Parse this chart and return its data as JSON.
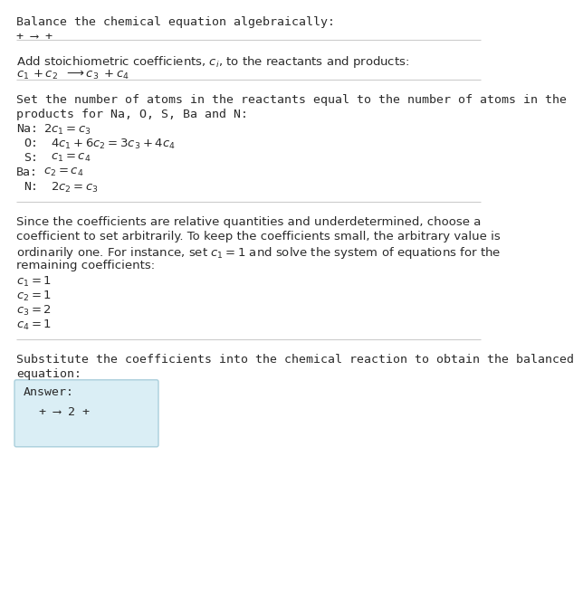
{
  "title": "Balance the chemical equation algebraically:",
  "section1_title": "Add stoichiometric coefficients, $c_i$, to the reactants and products:",
  "section2_title_line1": "Set the number of atoms in the reactants equal to the number of atoms in the",
  "section2_title_line2": "products for Na, O, S, Ba and N:",
  "equations": [
    [
      "Na:",
      "$2 c_1 = c_3$"
    ],
    [
      "  O:",
      "$4 c_1 + 6 c_2 = 3 c_3 + 4 c_4$"
    ],
    [
      "  S:",
      "$c_1 = c_4$"
    ],
    [
      "Ba:",
      "$c_2 = c_4$"
    ],
    [
      "  N:",
      "$2 c_2 = c_3$"
    ]
  ],
  "section3_lines": [
    "Since the coefficients are relative quantities and underdetermined, choose a",
    "coefficient to set arbitrarily. To keep the coefficients small, the arbitrary value is",
    "ordinarily one. For instance, set $c_1 = 1$ and solve the system of equations for the",
    "remaining coefficients:"
  ],
  "coefficients": [
    "$c_1 = 1$",
    "$c_2 = 1$",
    "$c_3 = 2$",
    "$c_4 = 1$"
  ],
  "section4_line1": "Substitute the coefficients into the chemical reaction to obtain the balanced",
  "section4_line2": "equation:",
  "answer_label": "Answer:",
  "bg_color": "#ffffff",
  "text_color": "#2a2a2a",
  "box_bg_color": "#daeef5",
  "box_edge_color": "#aacfdc",
  "sep_color": "#cccccc",
  "font_size": 9.5,
  "math_font_size": 9.5
}
